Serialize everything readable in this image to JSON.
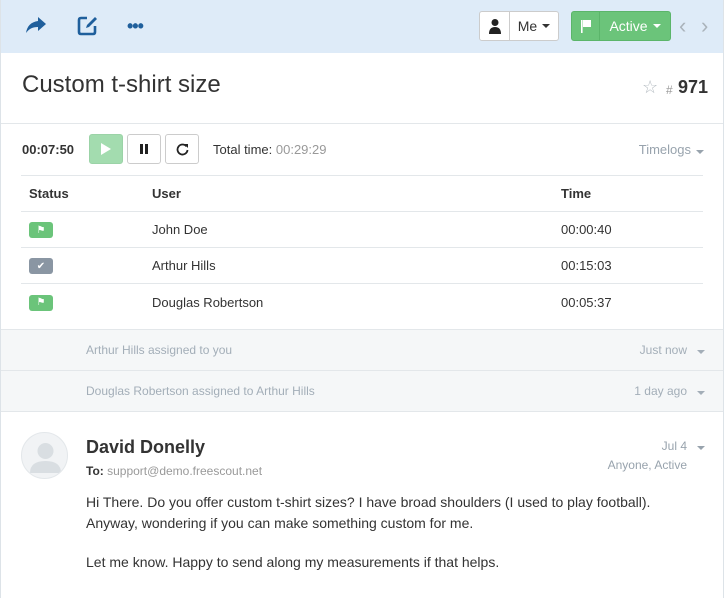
{
  "toolbar": {
    "me_label": "Me",
    "status_label": "Active",
    "status_color": "#6bc47a"
  },
  "conversation": {
    "title": "Custom t-shirt size",
    "number_prefix": "#",
    "number": "971"
  },
  "timer": {
    "current": "00:07:50",
    "total_label": "Total time:",
    "total": "00:29:29",
    "timelogs_label": "Timelogs"
  },
  "timelogs": {
    "headers": [
      "Status",
      "User",
      "Time"
    ],
    "rows": [
      {
        "status": "active",
        "user": "John Doe",
        "time": "00:00:40"
      },
      {
        "status": "closed",
        "user": "Arthur Hills",
        "time": "00:15:03"
      },
      {
        "status": "active",
        "user": "Douglas Robertson",
        "time": "00:05:37"
      }
    ]
  },
  "notes": [
    {
      "text": "Arthur Hills assigned to you",
      "when": "Just now"
    },
    {
      "text": "Douglas Robertson assigned to Arthur Hills",
      "when": "1 day ago"
    }
  ],
  "message": {
    "from": "David Donelly",
    "to_label": "To:",
    "to": "support@demo.freescout.net",
    "date": "Jul 4",
    "meta": "Anyone, Active",
    "body": [
      "Hi There. Do you offer custom t-shirt sizes? I have broad shoulders (I used to play football). Anyway, wondering if you can make something custom for me.",
      "Let me know. Happy to send along my measurements if that helps."
    ]
  }
}
